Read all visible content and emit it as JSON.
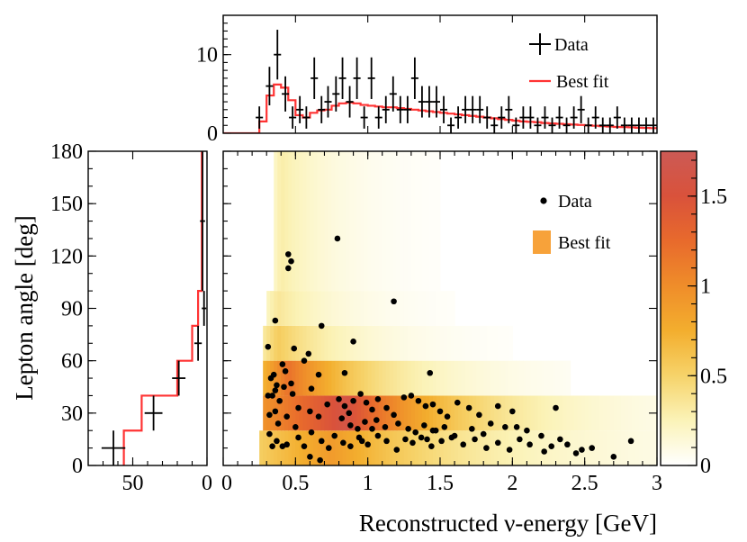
{
  "chart_data": [
    {
      "type": "heatmap",
      "name": "main-2d",
      "xlabel": "Reconstructed ν-energy [GeV]",
      "ylabel": "Lepton angle [deg]",
      "xlim": [
        0,
        3
      ],
      "ylim": [
        0,
        180
      ],
      "x_ticks": [
        "0",
        "0.5",
        "1",
        "1.5",
        "2",
        "2.5",
        "3"
      ],
      "x_tick_values": [
        0,
        0.5,
        1,
        1.5,
        2,
        2.5,
        3
      ],
      "y_ticks": [
        "0",
        "30",
        "60",
        "90",
        "120",
        "150",
        "180"
      ],
      "y_tick_values": [
        0,
        30,
        60,
        90,
        120,
        150,
        180
      ],
      "legend": [
        {
          "label": "Data",
          "marker": "dot",
          "color": "#000000"
        },
        {
          "label": "Best fit",
          "marker": "box",
          "color": "#f7a23a"
        }
      ],
      "angle_bins": [
        [
          0,
          20
        ],
        [
          20,
          40
        ],
        [
          40,
          60
        ],
        [
          60,
          80
        ],
        [
          80,
          100
        ],
        [
          100,
          180
        ]
      ],
      "bands": [
        {
          "y": [
            0,
            20
          ],
          "peak": 0.9,
          "x_start": 0.26,
          "x_peak": 0.75,
          "x_end": 3.0,
          "scale": 1.0
        },
        {
          "y": [
            20,
            40
          ],
          "peak": 1.6,
          "x_start": 0.28,
          "x_peak": 0.85,
          "x_end": 3.0,
          "scale": 0.75
        },
        {
          "y": [
            40,
            60
          ],
          "peak": 1.2,
          "x_start": 0.28,
          "x_peak": 0.45,
          "x_end": 2.4,
          "scale": 0.6
        },
        {
          "y": [
            60,
            80
          ],
          "peak": 0.55,
          "x_start": 0.28,
          "x_peak": 0.38,
          "x_end": 2.0,
          "scale": 0.5
        },
        {
          "y": [
            80,
            100
          ],
          "peak": 0.35,
          "x_start": 0.3,
          "x_peak": 0.38,
          "x_end": 1.6,
          "scale": 0.45
        },
        {
          "y": [
            100,
            180
          ],
          "peak": 0.3,
          "x_start": 0.35,
          "x_peak": 0.4,
          "x_end": 1.5,
          "scale": 0.4
        }
      ],
      "colorbar": {
        "range": [
          0,
          1.75
        ],
        "ticks": [
          "0",
          "0.5",
          "1",
          "1.5"
        ],
        "tick_values": [
          0,
          0.5,
          1,
          1.5
        ],
        "colors": [
          "#ffffff",
          "#fbf3b8",
          "#f6d36a",
          "#f3ae2e",
          "#ef8d2a",
          "#e86a2c",
          "#d9523b",
          "#cc5a55"
        ]
      },
      "data_points": [
        [
          0.45,
          121
        ],
        [
          0.47,
          117
        ],
        [
          0.45,
          113
        ],
        [
          0.79,
          130
        ],
        [
          1.18,
          94
        ],
        [
          0.36,
          83
        ],
        [
          0.31,
          68
        ],
        [
          0.49,
          67
        ],
        [
          0.68,
          80
        ],
        [
          0.59,
          64
        ],
        [
          0.56,
          60
        ],
        [
          0.9,
          71
        ],
        [
          0.35,
          52
        ],
        [
          0.41,
          58
        ],
        [
          0.43,
          54
        ],
        [
          0.33,
          50
        ],
        [
          0.37,
          46
        ],
        [
          0.36,
          43
        ],
        [
          0.42,
          45
        ],
        [
          0.47,
          47
        ],
        [
          0.31,
          40
        ],
        [
          0.34,
          40
        ],
        [
          0.39,
          37
        ],
        [
          0.48,
          41
        ],
        [
          0.61,
          44
        ],
        [
          0.66,
          52
        ],
        [
          0.84,
          53
        ],
        [
          1.43,
          53
        ],
        [
          0.32,
          29
        ],
        [
          0.36,
          31
        ],
        [
          0.44,
          28
        ],
        [
          0.52,
          33
        ],
        [
          0.6,
          31
        ],
        [
          0.66,
          28
        ],
        [
          0.72,
          35
        ],
        [
          0.8,
          38
        ],
        [
          0.84,
          34
        ],
        [
          0.87,
          30
        ],
        [
          0.9,
          37
        ],
        [
          0.95,
          41
        ],
        [
          0.99,
          36
        ],
        [
          1.03,
          32
        ],
        [
          1.07,
          38
        ],
        [
          1.13,
          33
        ],
        [
          1.18,
          29
        ],
        [
          1.25,
          39
        ],
        [
          1.3,
          40
        ],
        [
          1.35,
          37
        ],
        [
          1.4,
          34
        ],
        [
          1.45,
          35
        ],
        [
          1.5,
          31
        ],
        [
          1.55,
          28
        ],
        [
          1.62,
          36
        ],
        [
          1.7,
          33
        ],
        [
          1.77,
          29
        ],
        [
          1.85,
          24
        ],
        [
          1.9,
          34
        ],
        [
          2.0,
          31
        ],
        [
          2.3,
          33
        ],
        [
          0.82,
          27
        ],
        [
          0.88,
          23
        ],
        [
          0.93,
          21
        ],
        [
          0.98,
          25
        ],
        [
          1.06,
          26
        ],
        [
          1.12,
          22
        ],
        [
          1.21,
          24
        ],
        [
          1.28,
          21
        ],
        [
          1.33,
          19
        ],
        [
          1.39,
          23
        ],
        [
          1.47,
          20
        ],
        [
          1.53,
          22
        ],
        [
          1.6,
          17
        ],
        [
          1.72,
          21
        ],
        [
          1.8,
          18
        ],
        [
          1.95,
          22
        ],
        [
          2.1,
          20
        ],
        [
          2.2,
          17
        ],
        [
          0.32,
          18
        ],
        [
          0.37,
          14
        ],
        [
          0.41,
          11
        ],
        [
          0.44,
          12
        ],
        [
          0.52,
          16
        ],
        [
          0.56,
          11
        ],
        [
          0.61,
          19
        ],
        [
          0.68,
          14
        ],
        [
          0.73,
          10
        ],
        [
          0.77,
          17
        ],
        [
          0.83,
          13
        ],
        [
          0.88,
          11
        ],
        [
          0.94,
          16
        ],
        [
          1.0,
          12
        ],
        [
          1.07,
          17
        ],
        [
          1.13,
          14
        ],
        [
          1.2,
          9
        ],
        [
          1.26,
          15
        ],
        [
          1.31,
          13
        ],
        [
          1.37,
          16
        ],
        [
          1.44,
          11
        ],
        [
          1.51,
          14
        ],
        [
          1.58,
          16
        ],
        [
          1.66,
          12
        ],
        [
          1.74,
          15
        ],
        [
          1.82,
          10
        ],
        [
          1.9,
          13
        ],
        [
          1.98,
          9
        ],
        [
          2.05,
          15
        ],
        [
          2.12,
          12
        ],
        [
          2.22,
          8
        ],
        [
          2.33,
          15
        ],
        [
          2.38,
          12
        ],
        [
          2.44,
          7
        ],
        [
          2.48,
          9
        ],
        [
          2.55,
          10
        ],
        [
          2.7,
          5
        ],
        [
          2.82,
          14
        ],
        [
          0.5,
          22
        ],
        [
          0.38,
          24
        ],
        [
          0.34,
          11
        ],
        [
          0.6,
          5
        ],
        [
          0.67,
          3
        ],
        [
          1.03,
          21
        ],
        [
          1.41,
          15
        ],
        [
          2.27,
          11
        ],
        [
          1.45,
          20
        ],
        [
          0.96,
          14
        ],
        [
          2.03,
          22
        ]
      ]
    },
    {
      "type": "histogram",
      "name": "top-energy-projection",
      "xlim": [
        0,
        3
      ],
      "ylim": [
        0,
        15
      ],
      "y_ticks": [
        "0",
        "10"
      ],
      "y_tick_values": [
        0,
        10
      ],
      "legend": [
        {
          "label": "Data",
          "marker": "cross",
          "color": "#000000"
        },
        {
          "label": "Best fit",
          "marker": "line",
          "color": "#ff3333"
        }
      ],
      "bin_edges": [
        0.0,
        0.05,
        0.1,
        0.15,
        0.2,
        0.25,
        0.3,
        0.35,
        0.4,
        0.45,
        0.5,
        0.55,
        0.6,
        0.65,
        0.7,
        0.75,
        0.8,
        0.85,
        0.9,
        0.95,
        1.0,
        1.05,
        1.1,
        1.15,
        1.2,
        1.25,
        1.3,
        1.35,
        1.4,
        1.45,
        1.5,
        1.55,
        1.6,
        1.65,
        1.7,
        1.75,
        1.8,
        1.85,
        1.9,
        1.95,
        2.0,
        2.05,
        2.1,
        2.15,
        2.2,
        2.25,
        2.3,
        2.35,
        2.4,
        2.45,
        2.5,
        2.55,
        2.6,
        2.65,
        2.7,
        2.75,
        2.8,
        2.85,
        2.9,
        2.95,
        3.0
      ],
      "best_fit": [
        0,
        0,
        0,
        0,
        0,
        1.5,
        4.8,
        6.2,
        5.8,
        4.2,
        2.3,
        2.0,
        2.6,
        2.9,
        3.0,
        3.5,
        3.8,
        3.9,
        3.8,
        3.6,
        3.5,
        3.4,
        3.3,
        3.3,
        3.2,
        3.1,
        3.0,
        2.9,
        2.8,
        2.7,
        2.6,
        2.5,
        2.4,
        2.3,
        2.2,
        2.1,
        2.0,
        1.9,
        1.8,
        1.7,
        1.6,
        1.5,
        1.45,
        1.4,
        1.3,
        1.25,
        1.2,
        1.15,
        1.1,
        1.05,
        1.0,
        0.95,
        0.9,
        0.85,
        0.8,
        0.78,
        0.75,
        0.7,
        0.68,
        0.65
      ],
      "data_points": [
        {
          "x": 0.25,
          "y": 2
        },
        {
          "x": 0.32,
          "y": 6
        },
        {
          "x": 0.375,
          "y": 10
        },
        {
          "x": 0.43,
          "y": 5
        },
        {
          "x": 0.48,
          "y": 2
        },
        {
          "x": 0.53,
          "y": 3
        },
        {
          "x": 0.575,
          "y": 2
        },
        {
          "x": 0.63,
          "y": 7
        },
        {
          "x": 0.68,
          "y": 3
        },
        {
          "x": 0.725,
          "y": 4
        },
        {
          "x": 0.78,
          "y": 5
        },
        {
          "x": 0.825,
          "y": 7
        },
        {
          "x": 0.875,
          "y": 4
        },
        {
          "x": 0.925,
          "y": 7
        },
        {
          "x": 0.975,
          "y": 2
        },
        {
          "x": 1.025,
          "y": 7
        },
        {
          "x": 1.075,
          "y": 2
        },
        {
          "x": 1.125,
          "y": 3
        },
        {
          "x": 1.175,
          "y": 5
        },
        {
          "x": 1.225,
          "y": 3
        },
        {
          "x": 1.275,
          "y": 3
        },
        {
          "x": 1.325,
          "y": 7
        },
        {
          "x": 1.375,
          "y": 4
        },
        {
          "x": 1.425,
          "y": 4
        },
        {
          "x": 1.475,
          "y": 4
        },
        {
          "x": 1.525,
          "y": 3
        },
        {
          "x": 1.575,
          "y": 1
        },
        {
          "x": 1.625,
          "y": 2
        },
        {
          "x": 1.675,
          "y": 3
        },
        {
          "x": 1.725,
          "y": 3
        },
        {
          "x": 1.775,
          "y": 3
        },
        {
          "x": 1.825,
          "y": 2
        },
        {
          "x": 1.875,
          "y": 1
        },
        {
          "x": 1.925,
          "y": 2
        },
        {
          "x": 1.975,
          "y": 3
        },
        {
          "x": 2.025,
          "y": 1
        },
        {
          "x": 2.075,
          "y": 2
        },
        {
          "x": 2.125,
          "y": 2
        },
        {
          "x": 2.175,
          "y": 1
        },
        {
          "x": 2.225,
          "y": 2
        },
        {
          "x": 2.275,
          "y": 1
        },
        {
          "x": 2.325,
          "y": 2
        },
        {
          "x": 2.375,
          "y": 1
        },
        {
          "x": 2.425,
          "y": 2
        },
        {
          "x": 2.475,
          "y": 3
        },
        {
          "x": 2.525,
          "y": 1
        },
        {
          "x": 2.575,
          "y": 2
        },
        {
          "x": 2.625,
          "y": 1
        },
        {
          "x": 2.675,
          "y": 1
        },
        {
          "x": 2.725,
          "y": 2
        },
        {
          "x": 2.775,
          "y": 1
        },
        {
          "x": 2.825,
          "y": 1
        },
        {
          "x": 2.875,
          "y": 1
        },
        {
          "x": 2.925,
          "y": 1
        },
        {
          "x": 2.975,
          "y": 1
        }
      ]
    },
    {
      "type": "histogram",
      "name": "left-angle-projection",
      "orientation": "horizontal",
      "xlim": [
        80,
        0
      ],
      "ylim": [
        0,
        180
      ],
      "x_ticks": [
        "50",
        "0"
      ],
      "x_tick_values": [
        50,
        0
      ],
      "bin_edges": [
        0,
        20,
        40,
        60,
        80,
        100,
        180
      ],
      "best_fit": [
        56,
        44,
        20,
        10,
        6,
        3.5
      ],
      "data_points": [
        {
          "y": 10,
          "x": 63,
          "xerr": 8,
          "yerr": 10
        },
        {
          "y": 30,
          "x": 36,
          "xerr": 6,
          "yerr": 10
        },
        {
          "y": 50,
          "x": 19,
          "xerr": 4.5,
          "yerr": 10
        },
        {
          "y": 70,
          "x": 6,
          "xerr": 2.5,
          "yerr": 10
        },
        {
          "y": 90,
          "x": 2,
          "xerr": 1.5,
          "yerr": 10
        },
        {
          "y": 140,
          "x": 3,
          "xerr": 1.7,
          "yerr": 40
        }
      ]
    }
  ]
}
